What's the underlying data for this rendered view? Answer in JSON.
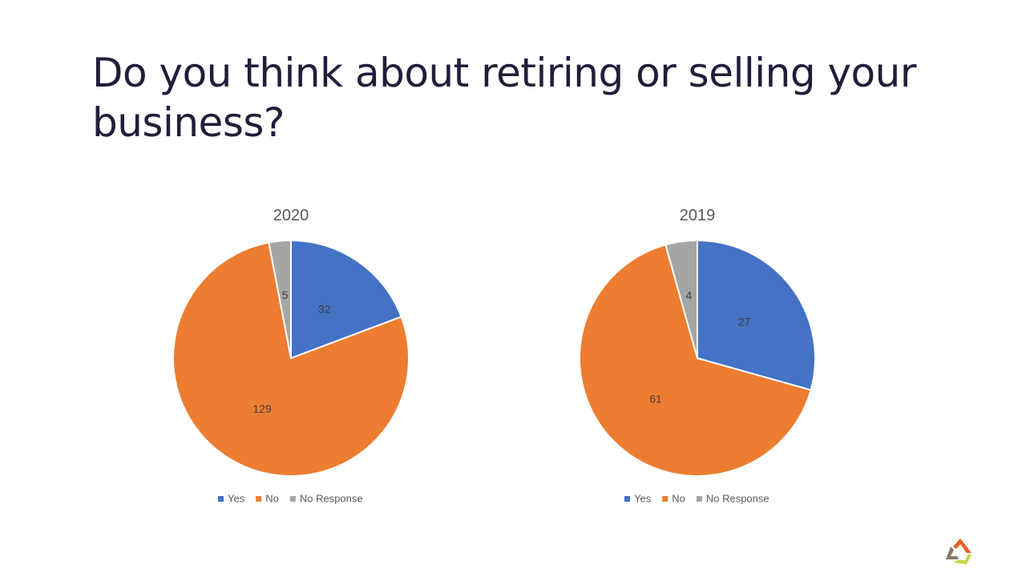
{
  "title": "Do you think about retiring or selling your business?",
  "chart_data": [
    {
      "type": "pie",
      "title": "2020",
      "categories": [
        "Yes",
        "No",
        "No Response"
      ],
      "values": [
        32,
        129,
        5
      ],
      "colors": [
        "#4472C4",
        "#ED7D31",
        "#A5A5A5"
      ],
      "legend": "bottom"
    },
    {
      "type": "pie",
      "title": "2019",
      "categories": [
        "Yes",
        "No",
        "No Response"
      ],
      "values": [
        27,
        61,
        4
      ],
      "colors": [
        "#4472C4",
        "#ED7D31",
        "#A5A5A5"
      ],
      "legend": "bottom"
    }
  ],
  "logo_icon": "company-logo-icon"
}
